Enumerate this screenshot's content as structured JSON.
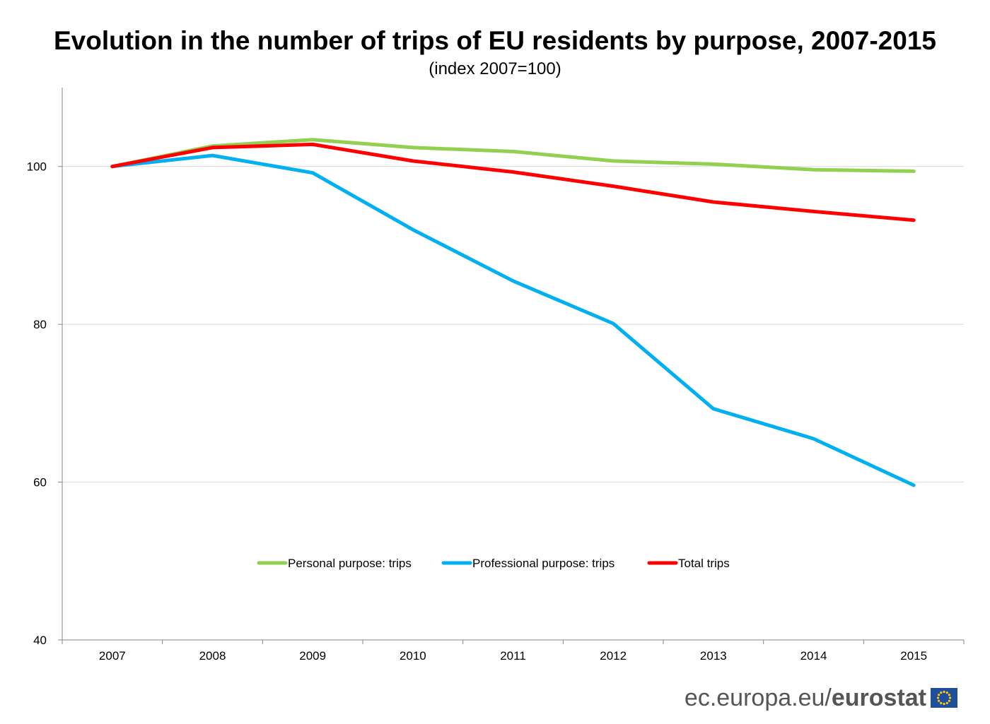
{
  "chart_data": {
    "type": "line",
    "title": "Evolution in the number of trips of EU residents by purpose, 2007-2015",
    "subtitle": "(index 2007=100)",
    "xlabel": "",
    "ylabel": "",
    "categories": [
      "2007",
      "2008",
      "2009",
      "2010",
      "2011",
      "2012",
      "2013",
      "2014",
      "2015"
    ],
    "ylim": [
      40,
      110
    ],
    "yticks": [
      "40",
      "60",
      "80",
      "100"
    ],
    "yticks_values": [
      40,
      60,
      80,
      100
    ],
    "grid": true,
    "legend_position": "lower-center",
    "series": [
      {
        "name": "Personal purpose: trips",
        "color": "#92D050",
        "values": [
          100.0,
          102.6,
          103.4,
          102.4,
          101.9,
          100.7,
          100.3,
          99.6,
          99.4
        ]
      },
      {
        "name": "Professional purpose: trips",
        "color": "#00B0F0",
        "values": [
          100.0,
          101.4,
          99.2,
          92.0,
          85.5,
          80.1,
          69.3,
          65.5,
          59.6
        ]
      },
      {
        "name": "Total trips",
        "color": "#FF0000",
        "values": [
          100.0,
          102.4,
          102.8,
          100.7,
          99.3,
          97.5,
          95.5,
          94.3,
          93.2
        ]
      }
    ]
  },
  "footer": {
    "domain": "ec.europa.eu/",
    "brand": "eurostat"
  }
}
